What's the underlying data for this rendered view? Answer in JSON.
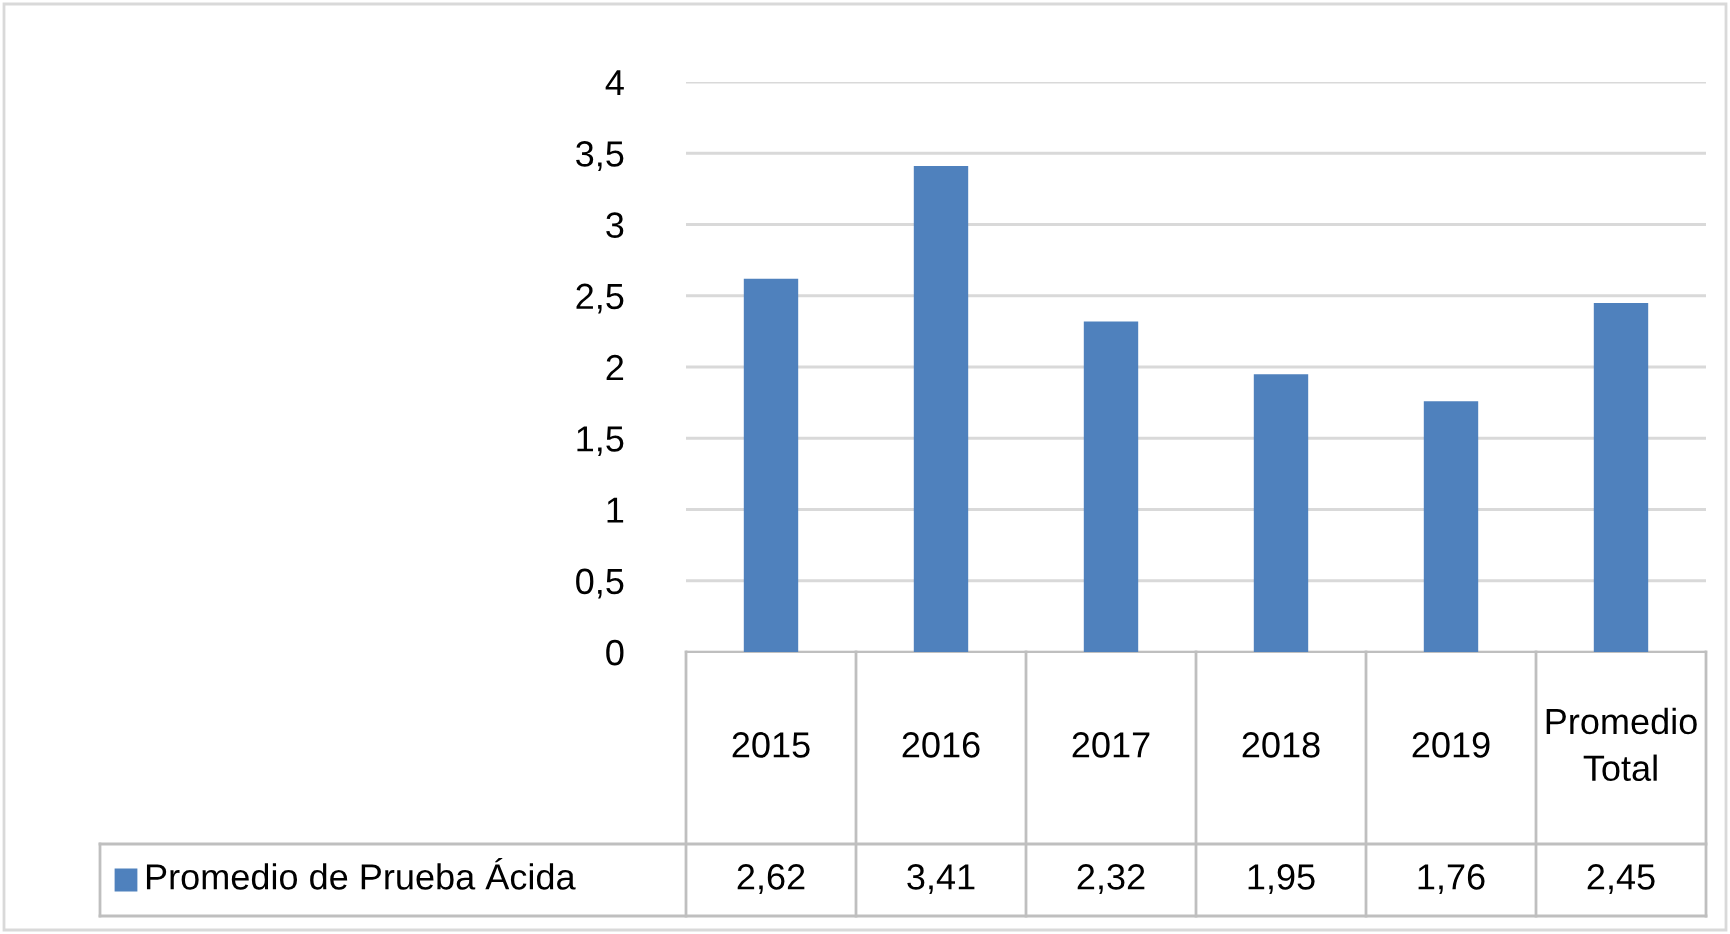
{
  "chart_data": {
    "type": "bar",
    "categories": [
      "2015",
      "2016",
      "2017",
      "2018",
      "2019",
      "Promedio Total"
    ],
    "series": [
      {
        "name": "Promedio de Prueba Ácida",
        "color": "#4f81bd",
        "values": [
          2.62,
          3.41,
          2.32,
          1.95,
          1.76,
          2.45
        ],
        "value_labels": [
          "2,62",
          "3,41",
          "2,32",
          "1,95",
          "1,76",
          "2,45"
        ]
      }
    ],
    "ylim": [
      0,
      4
    ],
    "yticks": [
      0,
      {
        "value": 0.5,
        "label": "0,5"
      },
      1,
      {
        "value": 1.5,
        "label": "1,5"
      },
      2,
      {
        "value": 2.5,
        "label": "2,5"
      },
      3,
      {
        "value": 3.5,
        "label": "3,5"
      },
      4
    ],
    "grid": "y",
    "legend": "bottom left"
  }
}
